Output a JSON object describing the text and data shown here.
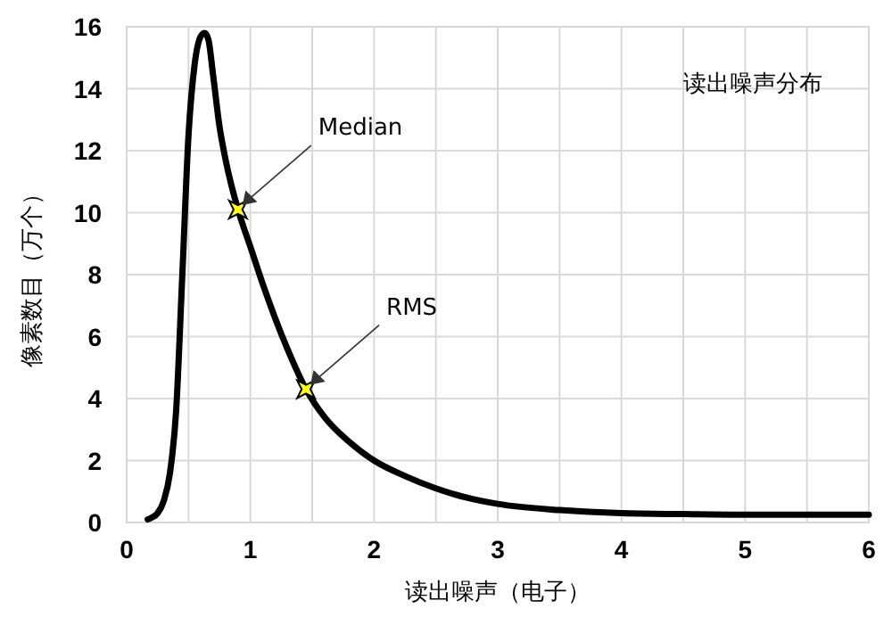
{
  "chart_data": {
    "type": "line",
    "title": "读出噪声分布",
    "xlabel": "读出噪声（电子）",
    "ylabel": "像素数目（万个）",
    "xlim": [
      0,
      6
    ],
    "ylim": [
      0,
      16
    ],
    "xticks": [
      0,
      {
        "value": 0.5,
        "label": null
      },
      1,
      {
        "value": 1.5,
        "label": null
      },
      2,
      {
        "value": 2.5,
        "label": null
      },
      3,
      {
        "value": 3.5,
        "label": null
      },
      4,
      {
        "value": 4.5,
        "label": null
      },
      5,
      {
        "value": 5.5,
        "label": null
      },
      6
    ],
    "yticks": [
      0,
      2,
      4,
      6,
      8,
      10,
      12,
      14,
      16
    ],
    "grid": true,
    "series": [
      {
        "color": "#000000",
        "line_style": "solid",
        "marker": "none",
        "x": [
          0.17,
          0.2,
          0.25,
          0.3,
          0.35,
          0.4,
          0.45,
          0.5,
          0.55,
          0.6,
          0.63,
          0.66,
          0.7,
          0.75,
          0.8,
          0.9,
          1.0,
          1.1,
          1.2,
          1.3,
          1.45,
          1.6,
          1.8,
          2.0,
          2.25,
          2.5,
          2.75,
          3.0,
          3.5,
          4.0,
          4.5,
          5.0,
          5.5,
          6.0
        ],
        "values": [
          0.1,
          0.15,
          0.3,
          0.7,
          1.6,
          3.6,
          8,
          12.5,
          14.8,
          15.7,
          15.8,
          15.6,
          14.4,
          12.8,
          11.7,
          10.1,
          8.9,
          7.7,
          6.6,
          5.6,
          4.3,
          3.4,
          2.6,
          2.0,
          1.5,
          1.1,
          0.8,
          0.6,
          0.4,
          0.3,
          0.27,
          0.25,
          0.25,
          0.25
        ]
      },
      {
        "type": "scatter",
        "color": "#ffff00",
        "marker": "star",
        "x": [
          0.9,
          1.45
        ],
        "values": [
          10.1,
          4.3
        ]
      }
    ],
    "annotations": [
      {
        "text": "Median",
        "x": 0.9,
        "y": 10.1
      },
      {
        "text": "RMS",
        "x": 1.45,
        "y": 4.3
      }
    ]
  }
}
